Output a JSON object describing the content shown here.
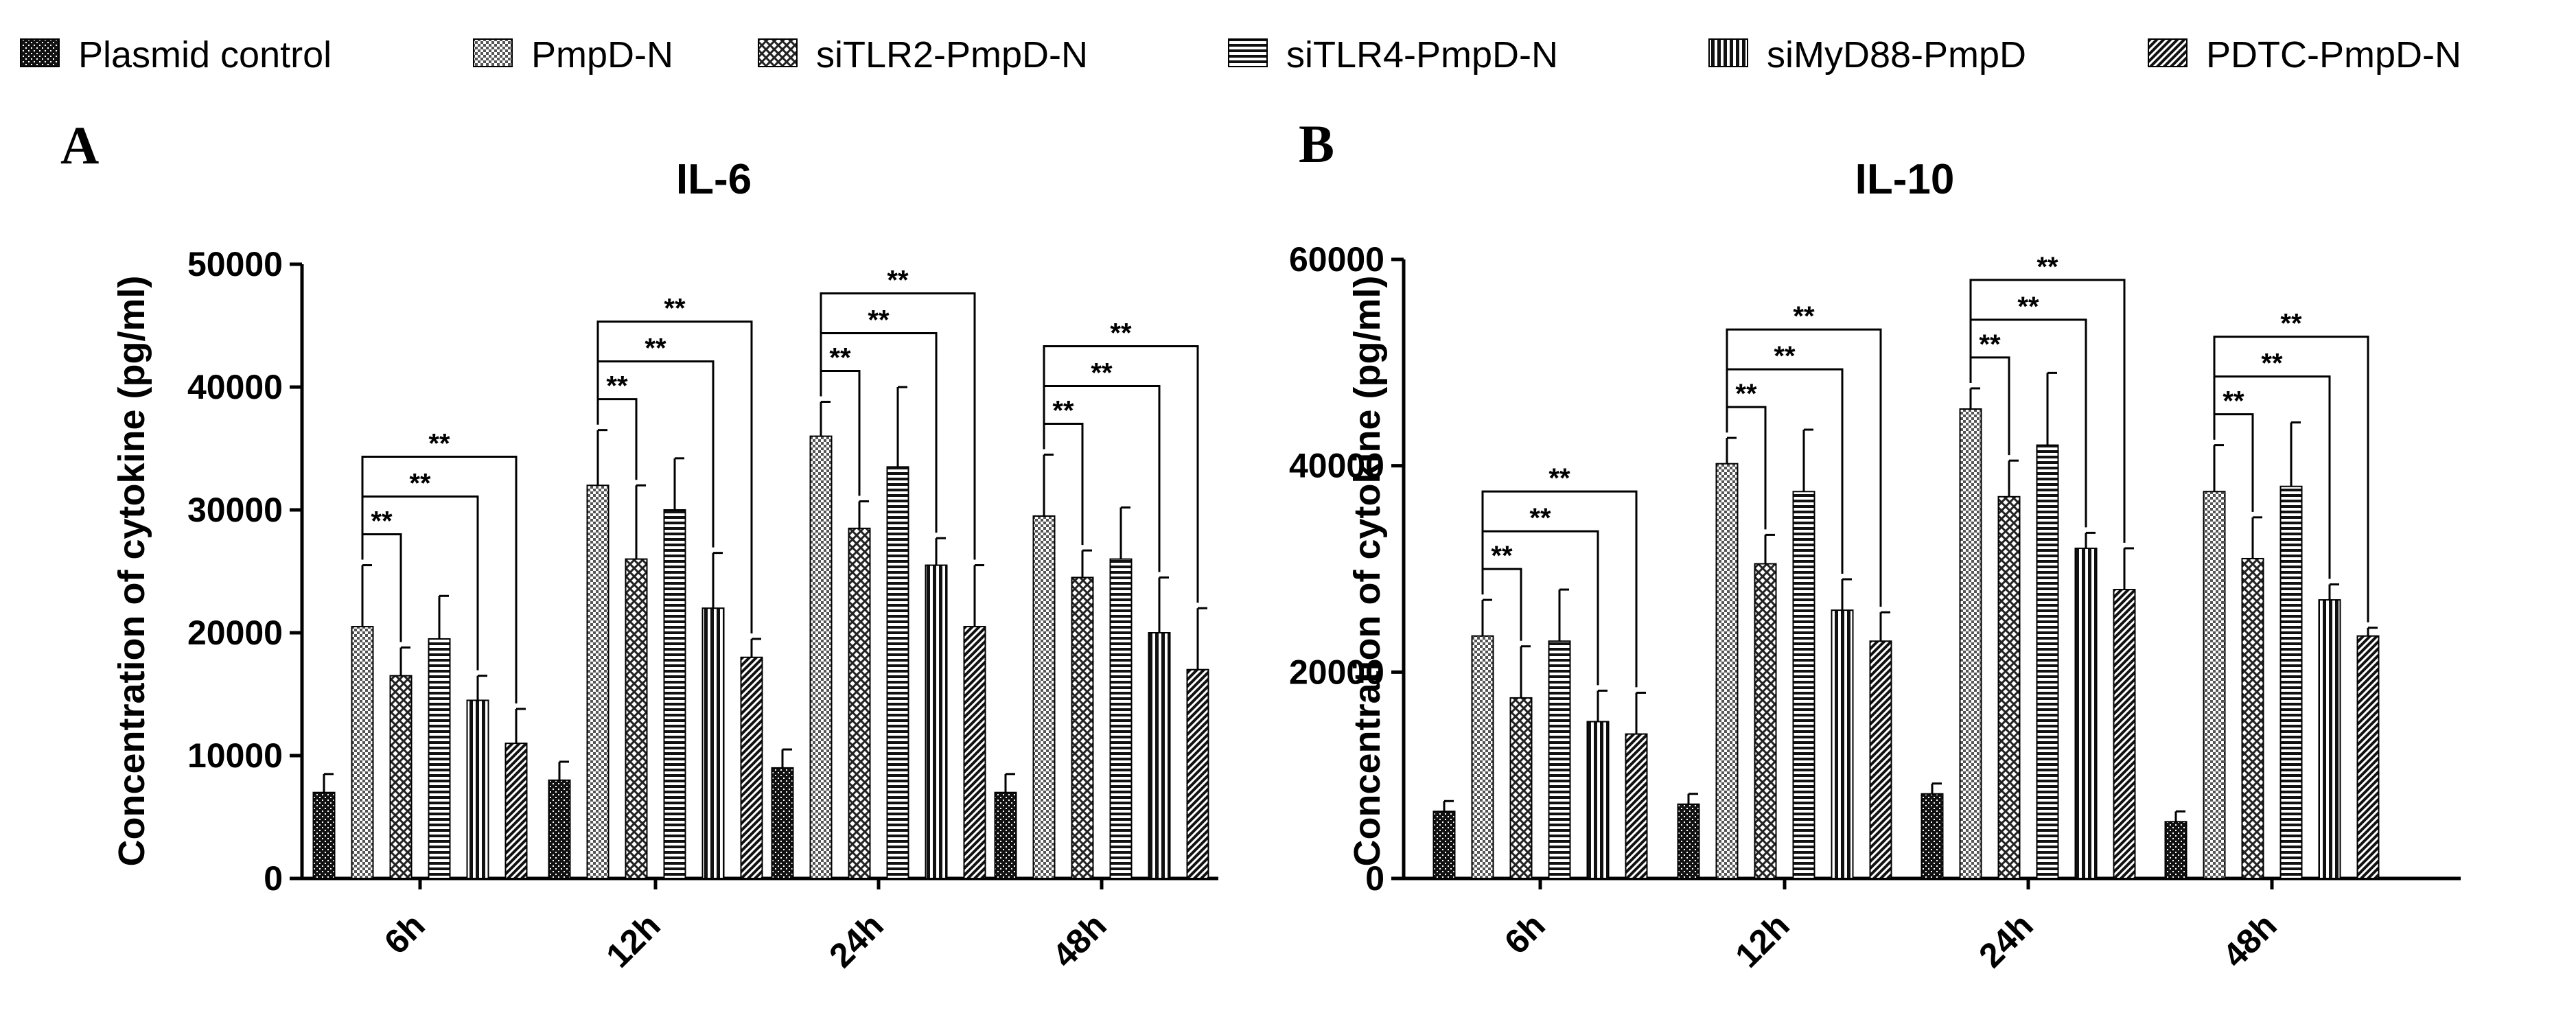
{
  "legend": [
    {
      "label": "Plasmid control",
      "pattern": "pat-dots"
    },
    {
      "label": "PmpD-N",
      "pattern": "pat-checker"
    },
    {
      "label": "siTLR2-PmpD-N",
      "pattern": "pat-cross"
    },
    {
      "label": "siTLR4-PmpD-N",
      "pattern": "pat-hlines"
    },
    {
      "label": "siMyD88-PmpD",
      "pattern": "pat-vlines"
    },
    {
      "label": "PDTC-PmpD-N",
      "pattern": "pat-diag"
    }
  ],
  "chart_data": [
    {
      "panel": "A",
      "type": "bar",
      "title": "IL-6",
      "ylabel": "Concentration of cytokine (pg/ml)",
      "xlabel": "",
      "ylim": [
        0,
        50000
      ],
      "yticks": [
        0,
        10000,
        20000,
        30000,
        40000,
        50000
      ],
      "categories": [
        "6h",
        "12h",
        "24h",
        "48h"
      ],
      "series": [
        {
          "name": "Plasmid control",
          "values": [
            7000,
            8000,
            9000,
            7000
          ],
          "errors": [
            1500,
            1500,
            1500,
            1500
          ]
        },
        {
          "name": "PmpD-N",
          "values": [
            20500,
            32000,
            36000,
            29500
          ],
          "errors": [
            5000,
            4500,
            2800,
            5000
          ]
        },
        {
          "name": "siTLR2-PmpD-N",
          "values": [
            16500,
            26000,
            28500,
            24500
          ],
          "errors": [
            2300,
            6000,
            2200,
            2200
          ]
        },
        {
          "name": "siTLR4-PmpD-N",
          "values": [
            19500,
            30000,
            33500,
            26000
          ],
          "errors": [
            3500,
            4200,
            6500,
            4200
          ]
        },
        {
          "name": "siMyD88-PmpD",
          "values": [
            14500,
            22000,
            25500,
            20000
          ],
          "errors": [
            2000,
            4500,
            2200,
            4500
          ]
        },
        {
          "name": "PDTC-PmpD-N",
          "values": [
            11000,
            18000,
            20500,
            17000
          ],
          "errors": [
            2800,
            1500,
            5000,
            5000
          ]
        }
      ],
      "significance": [
        {
          "group": "6h",
          "label": "**",
          "comparisons": [
            "PmpD-N vs siTLR2-PmpD-N",
            "PmpD-N vs siMyD88-PmpD",
            "PmpD-N vs PDTC-PmpD-N"
          ]
        },
        {
          "group": "12h",
          "label": "**",
          "comparisons": [
            "PmpD-N vs siTLR2-PmpD-N",
            "PmpD-N vs siMyD88-PmpD",
            "PmpD-N vs PDTC-PmpD-N"
          ]
        },
        {
          "group": "24h",
          "label": "**",
          "comparisons": [
            "PmpD-N vs siTLR2-PmpD-N",
            "PmpD-N vs siMyD88-PmpD",
            "PmpD-N vs PDTC-PmpD-N"
          ]
        },
        {
          "group": "48h",
          "label": "**",
          "comparisons": [
            "PmpD-N vs siTLR2-PmpD-N",
            "PmpD-N vs siMyD88-PmpD",
            "PmpD-N vs PDTC-PmpD-N"
          ]
        }
      ]
    },
    {
      "panel": "B",
      "type": "bar",
      "title": "IL-10",
      "ylabel": "Concentration of cytokine (pg/ml)",
      "xlabel": "",
      "ylim": [
        0,
        60000
      ],
      "yticks": [
        0,
        20000,
        40000,
        60000
      ],
      "categories": [
        "6h",
        "12h",
        "24h",
        "48h"
      ],
      "series": [
        {
          "name": "Plasmid control",
          "values": [
            6500,
            7200,
            8200,
            5500
          ],
          "errors": [
            1000,
            1000,
            1000,
            1000
          ]
        },
        {
          "name": "PmpD-N",
          "values": [
            23500,
            40200,
            45500,
            37500
          ],
          "errors": [
            3500,
            2500,
            2000,
            4500
          ]
        },
        {
          "name": "siTLR2-PmpD-N",
          "values": [
            17500,
            30500,
            37000,
            31000
          ],
          "errors": [
            5000,
            2800,
            3500,
            4000
          ]
        },
        {
          "name": "siTLR4-PmpD-N",
          "values": [
            23000,
            37500,
            42000,
            38000
          ],
          "errors": [
            5000,
            6000,
            7000,
            6200
          ]
        },
        {
          "name": "siMyD88-PmpD",
          "values": [
            15200,
            26000,
            32000,
            27000
          ],
          "errors": [
            3000,
            3000,
            1500,
            1500
          ]
        },
        {
          "name": "PDTC-PmpD-N",
          "values": [
            14000,
            23000,
            28000,
            23500
          ],
          "errors": [
            4000,
            2800,
            4000,
            800
          ]
        }
      ],
      "significance": [
        {
          "group": "6h",
          "label": "**",
          "comparisons": [
            "PmpD-N vs siTLR2-PmpD-N",
            "PmpD-N vs siMyD88-PmpD",
            "PmpD-N vs PDTC-PmpD-N"
          ]
        },
        {
          "group": "12h",
          "label": "**",
          "comparisons": [
            "PmpD-N vs siTLR2-PmpD-N",
            "PmpD-N vs siMyD88-PmpD",
            "PmpD-N vs PDTC-PmpD-N"
          ]
        },
        {
          "group": "24h",
          "label": "**",
          "comparisons": [
            "PmpD-N vs siTLR2-PmpD-N",
            "PmpD-N vs siMyD88-PmpD",
            "PmpD-N vs PDTC-PmpD-N"
          ]
        },
        {
          "group": "48h",
          "label": "**",
          "comparisons": [
            "PmpD-N vs siTLR2-PmpD-N",
            "PmpD-N vs siMyD88-PmpD",
            "PmpD-N vs PDTC-PmpD-N"
          ]
        }
      ]
    }
  ]
}
